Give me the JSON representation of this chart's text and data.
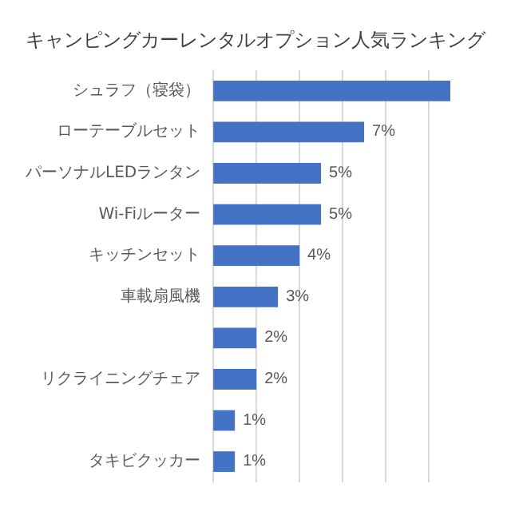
{
  "chart_data": {
    "type": "bar",
    "orientation": "horizontal",
    "title": "キャンピングカーレンタルオプション人気ランキング",
    "categories": [
      "シュラフ（寝袋）",
      "ローテーブルセット",
      "パーソナルLEDランタン",
      "Wi-Fiルーター",
      "キッチンセット",
      "車載扇風機",
      null,
      "リクライニングチェア",
      null,
      "タキビクッカー"
    ],
    "values": [
      11,
      7,
      5,
      5,
      4,
      3,
      2,
      2,
      1,
      1
    ],
    "value_labels": [
      null,
      "7%",
      "5%",
      "5%",
      "4%",
      "3%",
      "2%",
      "2%",
      "1%",
      "1%"
    ],
    "color": "#4472c4",
    "xlim": [
      0,
      11
    ],
    "xticks": [
      {
        "value": 0,
        "label": null
      },
      {
        "value": 2,
        "label": null
      },
      {
        "value": 4,
        "label": null
      },
      {
        "value": 6,
        "label": null
      },
      {
        "value": 8,
        "label": null
      },
      {
        "value": 10,
        "label": null
      }
    ],
    "grid": "x"
  }
}
